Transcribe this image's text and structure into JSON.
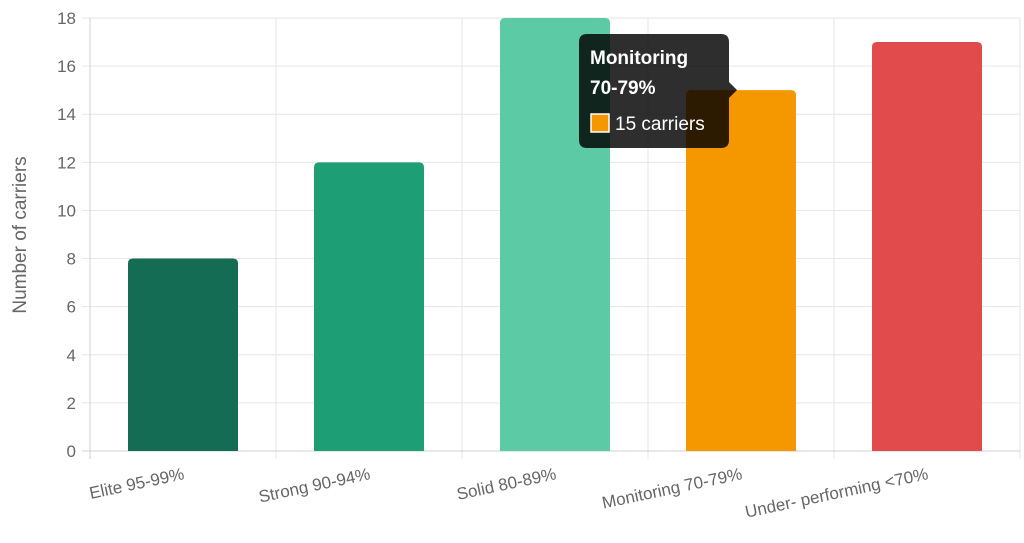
{
  "chart_data": {
    "type": "bar",
    "categories": [
      "Elite 95-99%",
      "Strong 90-94%",
      "Solid 80-89%",
      "Monitoring 70-79%",
      "Under- performing <70%"
    ],
    "values": [
      8,
      12,
      18,
      15,
      17
    ],
    "colors": [
      "#146c55",
      "#1e9e74",
      "#5ccaa5",
      "#f59800",
      "#e24b4b"
    ],
    "xlabel": "",
    "ylabel": "Number of carriers",
    "ylim": [
      0,
      18
    ],
    "yticks": [
      0,
      2,
      4,
      6,
      8,
      10,
      12,
      14,
      16,
      18
    ],
    "grid": true,
    "tooltip": {
      "category_index": 3,
      "title_lines": [
        "Monitoring",
        "70-79%"
      ],
      "body": "15 carriers",
      "swatch_color": "#f59800"
    }
  }
}
